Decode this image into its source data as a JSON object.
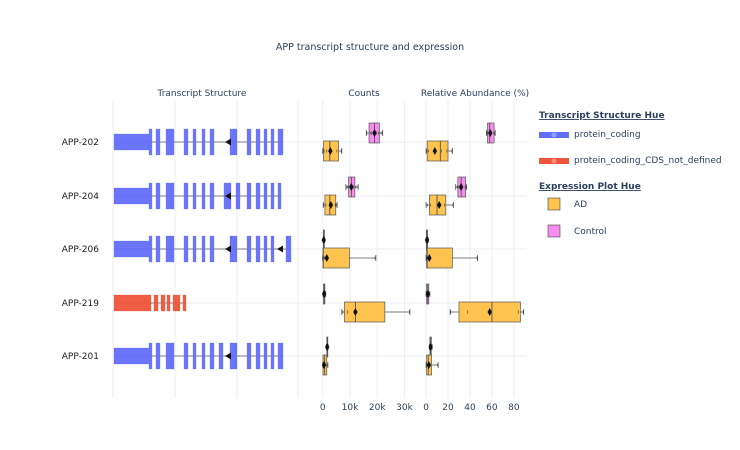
{
  "title": "APP transcript structure and expression",
  "panels": {
    "structure": "Transcript Structure",
    "counts": "Counts",
    "abundance": "Relative Abundance (%)"
  },
  "colors": {
    "protein_coding": "#636efa",
    "protein_coding_CDS_not_defined": "#ef553b",
    "AD": "#fec44f",
    "Control": "#f78df0",
    "text": "#2a3f5f",
    "grid": "#ebeef3"
  },
  "legend": {
    "structure_title": "Transcript Structure Hue",
    "structure_items": [
      "protein_coding",
      "protein_coding_CDS_not_defined"
    ],
    "expression_title": "Expression Plot Hue",
    "expression_items": [
      "AD",
      "Control"
    ]
  },
  "chart_data": [
    {
      "type": "transcript-structure",
      "transcripts": [
        {
          "name": "APP-202",
          "biotype": "protein_coding",
          "strand": "-",
          "exons": [
            [
              0,
              35
            ],
            [
              35,
              38
            ],
            [
              42,
              46
            ],
            [
              52,
              60
            ],
            [
              70,
              74
            ],
            [
              79,
              82
            ],
            [
              88,
              91
            ],
            [
              96,
              100
            ],
            [
              116,
              123
            ],
            [
              133,
              137
            ],
            [
              142,
              146
            ],
            [
              150,
              153
            ],
            [
              157,
              160
            ],
            [
              164,
              169
            ]
          ]
        },
        {
          "name": "APP-204",
          "biotype": "protein_coding",
          "strand": "-",
          "exons": [
            [
              0,
              35
            ],
            [
              35,
              38
            ],
            [
              42,
              46
            ],
            [
              52,
              60
            ],
            [
              70,
              74
            ],
            [
              79,
              82
            ],
            [
              88,
              91
            ],
            [
              96,
              100
            ],
            [
              110,
              117
            ],
            [
              122,
              126
            ],
            [
              133,
              137
            ],
            [
              142,
              146
            ],
            [
              150,
              153
            ],
            [
              157,
              160
            ],
            [
              164,
              167
            ]
          ]
        },
        {
          "name": "APP-206",
          "biotype": "protein_coding",
          "strand": "-",
          "exons": [
            [
              0,
              35
            ],
            [
              35,
              38
            ],
            [
              42,
              46
            ],
            [
              52,
              60
            ],
            [
              70,
              74
            ],
            [
              79,
              82
            ],
            [
              88,
              91
            ],
            [
              96,
              100
            ],
            [
              116,
              123
            ],
            [
              133,
              137
            ],
            [
              142,
              146
            ],
            [
              150,
              153
            ],
            [
              157,
              160
            ],
            [
              172,
              177
            ]
          ]
        },
        {
          "name": "APP-219",
          "biotype": "protein_coding_CDS_not_defined",
          "strand": "-",
          "exons": [
            [
              0,
              37
            ],
            [
              40,
              44
            ],
            [
              47,
              51
            ],
            [
              53,
              56
            ],
            [
              59,
              66
            ],
            [
              69,
              72
            ]
          ]
        },
        {
          "name": "APP-201",
          "biotype": "protein_coding",
          "strand": "-",
          "exons": [
            [
              0,
              35
            ],
            [
              35,
              38
            ],
            [
              42,
              46
            ],
            [
              52,
              60
            ],
            [
              70,
              74
            ],
            [
              79,
              82
            ],
            [
              88,
              91
            ],
            [
              96,
              100
            ],
            [
              105,
              109
            ],
            [
              116,
              123
            ],
            [
              133,
              137
            ],
            [
              142,
              146
            ],
            [
              150,
              153
            ],
            [
              157,
              160
            ],
            [
              164,
              169
            ]
          ]
        }
      ]
    },
    {
      "type": "box",
      "panel": "Counts",
      "xticks": [
        0,
        10000,
        20000,
        30000
      ],
      "xticklabels": [
        "0",
        "10k",
        "20k",
        "30k"
      ],
      "xlim": [
        -6500,
        33500
      ],
      "categories": [
        "APP-202",
        "APP-204",
        "APP-206",
        "APP-219",
        "APP-201"
      ],
      "series": [
        {
          "name": "Control",
          "boxes": [
            {
              "min": 16000,
              "q1": 17000,
              "median": 19000,
              "q3": 20800,
              "max": 22000,
              "mean": 19000,
              "points": [
                16200,
                17400,
                17900,
                18800,
                19700,
                20500,
                21400,
                21900
              ]
            },
            {
              "min": 8500,
              "q1": 9500,
              "median": 10500,
              "q3": 11800,
              "max": 13000,
              "mean": 10500,
              "points": [
                8700,
                9200,
                9600,
                10100,
                10700,
                11300,
                12200,
                12900
              ]
            },
            {
              "min": 150,
              "q1": 250,
              "median": 350,
              "q3": 500,
              "max": 700,
              "mean": 380,
              "points": [
                180,
                250,
                320,
                420,
                600
              ]
            },
            {
              "min": 150,
              "q1": 300,
              "median": 500,
              "q3": 800,
              "max": 1100,
              "mean": 520,
              "points": [
                200,
                350,
                500,
                700,
                1000
              ]
            },
            {
              "min": 1300,
              "q1": 1500,
              "median": 1650,
              "q3": 1850,
              "max": 2000,
              "mean": 1650,
              "points": [
                1350,
                1550,
                1700,
                1950
              ]
            }
          ]
        },
        {
          "name": "AD",
          "boxes": [
            {
              "min": 0,
              "q1": 300,
              "median": 2600,
              "q3": 5800,
              "max": 7000,
              "mean": 2800,
              "points": [
                100,
                500,
                1500,
                2600,
                3200,
                5200,
                6800
              ]
            },
            {
              "min": 200,
              "q1": 800,
              "median": 2600,
              "q3": 4800,
              "max": 5300,
              "mean": 3000,
              "points": [
                300,
                1200,
                2400,
                4600,
                5100
              ]
            },
            {
              "min": 0,
              "q1": 100,
              "median": 200,
              "q3": 9800,
              "max": 19500,
              "mean": 1500,
              "points": [
                0,
                50,
                120,
                250,
                600,
                19200
              ]
            },
            {
              "min": 7000,
              "q1": 8000,
              "median": 12000,
              "q3": 22800,
              "max": 32000,
              "mean": 12000,
              "points": [
                7400,
                9200,
                12000,
                31800
              ]
            },
            {
              "min": 0,
              "q1": 100,
              "median": 700,
              "q3": 1500,
              "max": 1900,
              "mean": 500,
              "points": [
                0,
                100,
                300,
                500,
                800,
                1600
              ]
            }
          ]
        }
      ]
    },
    {
      "type": "box",
      "panel": "Relative Abundance (%)",
      "xticks": [
        0,
        20,
        40,
        60,
        80
      ],
      "xticklabels": [
        "0",
        "20",
        "40",
        "60",
        "80"
      ],
      "xlim": [
        -11,
        92
      ],
      "categories": [
        "APP-202",
        "APP-204",
        "APP-206",
        "APP-219",
        "APP-201"
      ],
      "series": [
        {
          "name": "Control",
          "boxes": [
            {
              "min": 55,
              "q1": 56,
              "median": 58,
              "q3": 62,
              "max": 63,
              "mean": 58.5,
              "points": [
                55.2,
                56.2,
                57.5,
                59,
                61.8,
                62.8
              ]
            },
            {
              "min": 27,
              "q1": 29,
              "median": 32,
              "q3": 36,
              "max": 37,
              "mean": 32,
              "points": [
                27.2,
                28.5,
                30,
                32.5,
                35.5,
                36.8
              ]
            },
            {
              "min": 0,
              "q1": 0.3,
              "median": 0.8,
              "q3": 1.4,
              "max": 2,
              "mean": 0.9,
              "points": [
                0.1,
                0.5,
                1,
                1.8
              ]
            },
            {
              "min": 0,
              "q1": 0.5,
              "median": 1.5,
              "q3": 2.5,
              "max": 3.5,
              "mean": 1.6,
              "points": [
                0.2,
                1,
                2,
                3.2
              ]
            },
            {
              "min": 3,
              "q1": 3.5,
              "median": 4,
              "q3": 4.8,
              "max": 5.5,
              "mean": 4.2,
              "points": [
                3.1,
                3.8,
                4.4,
                5.3
              ]
            }
          ]
        },
        {
          "name": "AD",
          "boxes": [
            {
              "min": 0,
              "q1": 1,
              "median": 13,
              "q3": 20,
              "max": 24,
              "mean": 8,
              "points": [
                0.5,
                2,
                8,
                14,
                19,
                23.5
              ]
            },
            {
              "min": 0,
              "q1": 3,
              "median": 10,
              "q3": 18,
              "max": 25,
              "mean": 12,
              "points": [
                1,
                4,
                12,
                17,
                24.5
              ]
            },
            {
              "min": 0,
              "q1": 0.5,
              "median": 1,
              "q3": 24,
              "max": 47,
              "mean": 3,
              "points": [
                0.2,
                0.8,
                1.5,
                46.5
              ]
            },
            {
              "min": 22,
              "q1": 30,
              "median": 60,
              "q3": 86,
              "max": 89,
              "mean": 58,
              "points": [
                22.5,
                38,
                84,
                88.5
              ]
            },
            {
              "min": 0,
              "q1": 0.5,
              "median": 2,
              "q3": 5,
              "max": 11,
              "mean": 2.5,
              "points": [
                0.3,
                1.5,
                4,
                10.5
              ]
            }
          ]
        }
      ]
    }
  ]
}
